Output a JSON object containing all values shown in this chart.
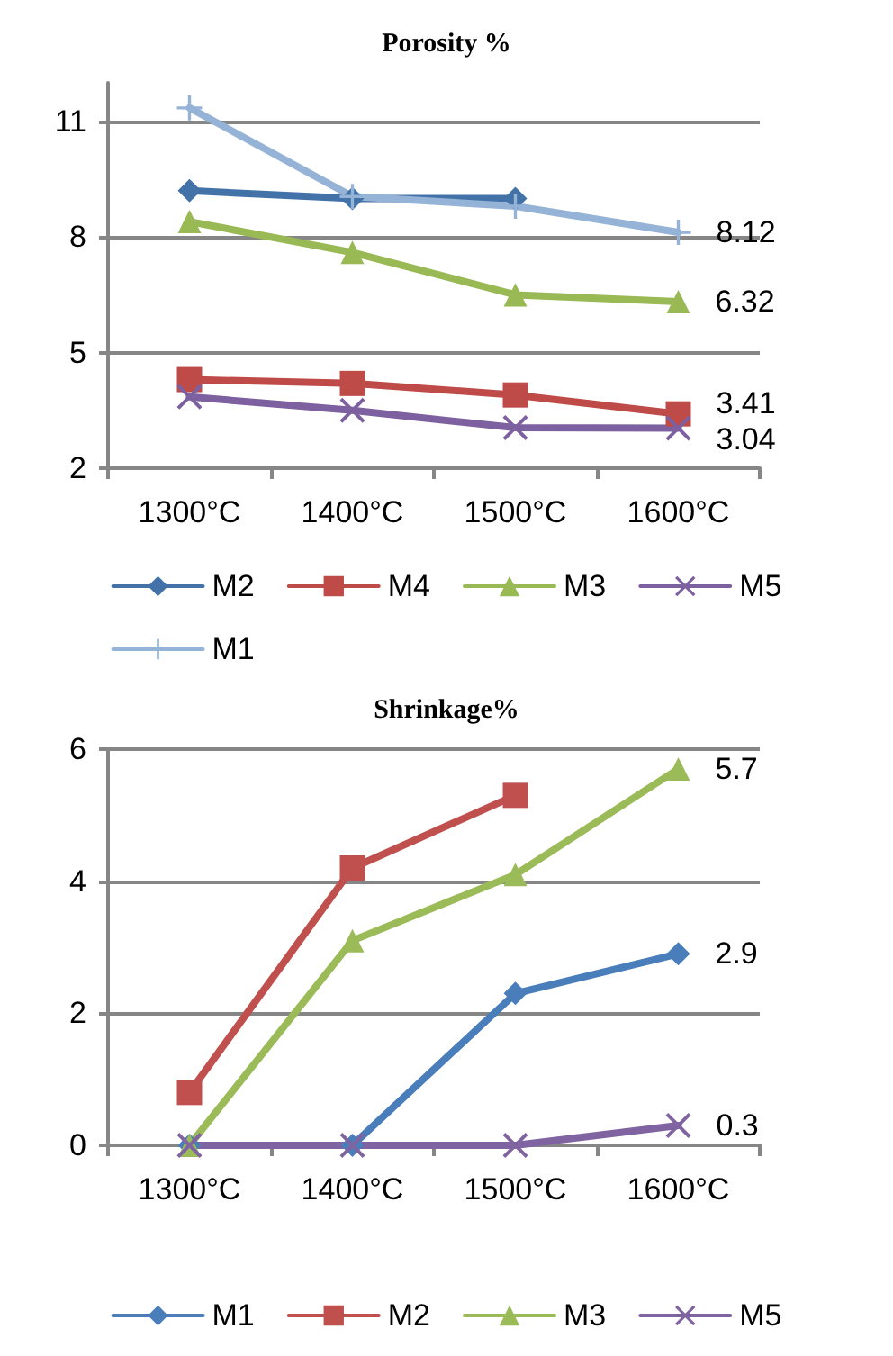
{
  "chart_data": [
    {
      "type": "line",
      "title": "Porosity %",
      "categories": [
        "1300°C",
        "1400°C",
        "1500°C",
        "1600°C"
      ],
      "ylim": [
        2,
        12
      ],
      "yticks": [
        2,
        5,
        8,
        11
      ],
      "grid": "y",
      "legend": "bottom",
      "series": [
        {
          "name": "M2",
          "color": "#4372a8",
          "marker": "diamond",
          "values": [
            9.2,
            9.0,
            9.0,
            null
          ]
        },
        {
          "name": "M4",
          "color": "#be4b48",
          "marker": "square",
          "values": [
            4.3,
            4.2,
            3.9,
            3.41
          ],
          "value_labels": [
            null,
            null,
            null,
            "3.41"
          ]
        },
        {
          "name": "M3",
          "color": "#98b954",
          "marker": "triangle",
          "values": [
            8.4,
            7.6,
            6.5,
            6.32
          ],
          "value_labels": [
            null,
            null,
            null,
            "6.32"
          ]
        },
        {
          "name": "M5",
          "color": "#7d60a0",
          "marker": "x",
          "values": [
            3.85,
            3.5,
            3.05,
            3.04
          ],
          "value_labels": [
            null,
            null,
            null,
            "3.04"
          ]
        },
        {
          "name": "M1",
          "color": "#95b3d7",
          "marker": "cross",
          "values": [
            11.35,
            9.05,
            8.8,
            8.12
          ],
          "value_labels": [
            null,
            null,
            null,
            "8.12"
          ]
        }
      ]
    },
    {
      "type": "line",
      "title": "Shrinkage%",
      "categories": [
        "1300°C",
        "1400°C",
        "1500°C",
        "1600°C"
      ],
      "ylim": [
        0,
        6
      ],
      "yticks": [
        0,
        2,
        4,
        6
      ],
      "grid": "y",
      "legend": "bottom",
      "series": [
        {
          "name": "M1",
          "color": "#4a7ebb",
          "marker": "diamond",
          "values": [
            0,
            0,
            2.3,
            2.9
          ],
          "value_labels": [
            null,
            null,
            null,
            "2.9"
          ]
        },
        {
          "name": "M2",
          "color": "#c0504d",
          "marker": "square",
          "values": [
            0.8,
            4.2,
            5.3,
            null
          ]
        },
        {
          "name": "M3",
          "color": "#9bbb59",
          "marker": "triangle",
          "values": [
            0,
            3.1,
            4.1,
            5.7
          ],
          "value_labels": [
            null,
            null,
            null,
            "5.7"
          ]
        },
        {
          "name": "M5",
          "color": "#8064a2",
          "marker": "x",
          "values": [
            0,
            0,
            0,
            0.3
          ],
          "value_labels": [
            null,
            null,
            null,
            "0.3"
          ]
        }
      ]
    }
  ]
}
